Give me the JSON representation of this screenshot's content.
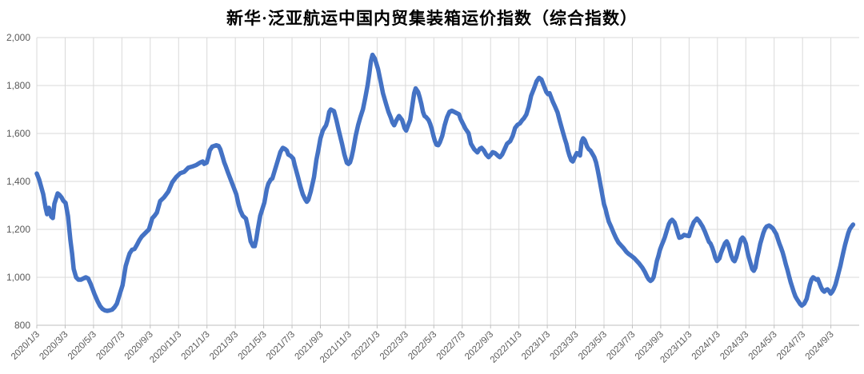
{
  "title": "新华·泛亚航运中国内贸集装箱运价指数（综合指数）",
  "chart_data": {
    "type": "line",
    "title": "新华·泛亚航运中国内贸集装箱运价指数（综合指数）",
    "series_name": "综合指数",
    "line_color": "#4472C4",
    "grid_color": "#D9D9D9",
    "axis_color": "#BFBFBF",
    "label_color": "#595959",
    "legend": "none",
    "grid": "on",
    "y_axis": {
      "min": 800,
      "max": 2000,
      "step": 200,
      "tick_labels": [
        "800",
        "1,000",
        "1,200",
        "1,400",
        "1,600",
        "1,800",
        "2,000"
      ]
    },
    "x_axis": {
      "tick_interval": "2 months",
      "tick_labels": [
        "2020/1/3",
        "2020/3/3",
        "2020/5/3",
        "2020/7/3",
        "2020/9/3",
        "2020/11/3",
        "2021/1/3",
        "2021/3/3",
        "2021/5/3",
        "2021/7/3",
        "2021/9/3",
        "2021/11/3",
        "2022/1/3",
        "2022/3/3",
        "2022/5/3",
        "2022/7/3",
        "2022/9/3",
        "2022/11/3",
        "2023/1/3",
        "2023/3/3",
        "2023/5/3",
        "2023/7/3",
        "2023/9/3",
        "2023/11/3",
        "2024/1/3",
        "2024/3/3",
        "2024/5/3",
        "2024/7/3",
        "2024/9/3"
      ]
    },
    "x_unit": "months since 2020/1/3",
    "points": [
      [
        0,
        1433
      ],
      [
        0.17,
        1407
      ],
      [
        0.45,
        1347
      ],
      [
        0.62,
        1290
      ],
      [
        0.73,
        1263
      ],
      [
        0.85,
        1290
      ],
      [
        1.02,
        1253
      ],
      [
        1.13,
        1247
      ],
      [
        1.24,
        1307
      ],
      [
        1.47,
        1350
      ],
      [
        1.58,
        1345
      ],
      [
        1.75,
        1333
      ],
      [
        1.86,
        1320
      ],
      [
        2.03,
        1310
      ],
      [
        2.2,
        1255
      ],
      [
        2.37,
        1155
      ],
      [
        2.49,
        1100
      ],
      [
        2.6,
        1035
      ],
      [
        2.77,
        1000
      ],
      [
        2.94,
        990
      ],
      [
        3.11,
        990
      ],
      [
        3.28,
        995
      ],
      [
        3.45,
        1000
      ],
      [
        3.62,
        995
      ],
      [
        3.78,
        975
      ],
      [
        3.9,
        957
      ],
      [
        4.07,
        930
      ],
      [
        4.29,
        900
      ],
      [
        4.46,
        880
      ],
      [
        4.63,
        868
      ],
      [
        4.8,
        862
      ],
      [
        4.97,
        860
      ],
      [
        5.14,
        862
      ],
      [
        5.31,
        865
      ],
      [
        5.48,
        875
      ],
      [
        5.65,
        890
      ],
      [
        5.88,
        935
      ],
      [
        6.05,
        967
      ],
      [
        6.27,
        1047
      ],
      [
        6.44,
        1080
      ],
      [
        6.55,
        1100
      ],
      [
        6.72,
        1115
      ],
      [
        6.89,
        1118
      ],
      [
        7.06,
        1135
      ],
      [
        7.23,
        1155
      ],
      [
        7.4,
        1170
      ],
      [
        7.57,
        1180
      ],
      [
        7.74,
        1190
      ],
      [
        7.91,
        1200
      ],
      [
        8.14,
        1246
      ],
      [
        8.31,
        1257
      ],
      [
        8.47,
        1270
      ],
      [
        8.7,
        1318
      ],
      [
        8.98,
        1334
      ],
      [
        9.27,
        1357
      ],
      [
        9.55,
        1396
      ],
      [
        9.83,
        1418
      ],
      [
        10.11,
        1434
      ],
      [
        10.4,
        1440
      ],
      [
        10.68,
        1457
      ],
      [
        10.96,
        1462
      ],
      [
        11.24,
        1468
      ],
      [
        11.53,
        1479
      ],
      [
        11.7,
        1483
      ],
      [
        11.81,
        1473
      ],
      [
        11.98,
        1478
      ],
      [
        12.09,
        1501
      ],
      [
        12.2,
        1529
      ],
      [
        12.37,
        1545
      ],
      [
        12.66,
        1551
      ],
      [
        12.82,
        1548
      ],
      [
        12.94,
        1534
      ],
      [
        13.11,
        1501
      ],
      [
        13.22,
        1479
      ],
      [
        13.33,
        1462
      ],
      [
        13.5,
        1434
      ],
      [
        13.79,
        1390
      ],
      [
        14.07,
        1346
      ],
      [
        14.24,
        1301
      ],
      [
        14.35,
        1279
      ],
      [
        14.52,
        1257
      ],
      [
        14.75,
        1245
      ],
      [
        14.92,
        1200
      ],
      [
        15.08,
        1150
      ],
      [
        15.25,
        1130
      ],
      [
        15.37,
        1130
      ],
      [
        15.48,
        1160
      ],
      [
        15.59,
        1201
      ],
      [
        15.76,
        1257
      ],
      [
        16.05,
        1312
      ],
      [
        16.22,
        1368
      ],
      [
        16.33,
        1390
      ],
      [
        16.5,
        1408
      ],
      [
        16.61,
        1412
      ],
      [
        16.78,
        1445
      ],
      [
        17.01,
        1490
      ],
      [
        17.18,
        1523
      ],
      [
        17.35,
        1540
      ],
      [
        17.51,
        1535
      ],
      [
        17.63,
        1529
      ],
      [
        17.74,
        1512
      ],
      [
        17.91,
        1506
      ],
      [
        18.08,
        1495
      ],
      [
        18.19,
        1468
      ],
      [
        18.42,
        1418
      ],
      [
        18.59,
        1379
      ],
      [
        18.76,
        1346
      ],
      [
        18.93,
        1325
      ],
      [
        19.04,
        1315
      ],
      [
        19.15,
        1323
      ],
      [
        19.32,
        1357
      ],
      [
        19.55,
        1418
      ],
      [
        19.72,
        1490
      ],
      [
        19.83,
        1523
      ],
      [
        20,
        1579
      ],
      [
        20.17,
        1612
      ],
      [
        20.28,
        1623
      ],
      [
        20.4,
        1634
      ],
      [
        20.51,
        1656
      ],
      [
        20.62,
        1690
      ],
      [
        20.73,
        1700
      ],
      [
        20.96,
        1693
      ],
      [
        21.13,
        1656
      ],
      [
        21.3,
        1612
      ],
      [
        21.53,
        1556
      ],
      [
        21.69,
        1512
      ],
      [
        21.86,
        1478
      ],
      [
        21.98,
        1473
      ],
      [
        22.09,
        1479
      ],
      [
        22.2,
        1501
      ],
      [
        22.32,
        1534
      ],
      [
        22.49,
        1590
      ],
      [
        22.66,
        1634
      ],
      [
        22.82,
        1668
      ],
      [
        23,
        1701
      ],
      [
        23.16,
        1747
      ],
      [
        23.33,
        1801
      ],
      [
        23.45,
        1851
      ],
      [
        23.56,
        1901
      ],
      [
        23.67,
        1928
      ],
      [
        23.84,
        1912
      ],
      [
        24.07,
        1868
      ],
      [
        24.24,
        1818
      ],
      [
        24.41,
        1768
      ],
      [
        24.63,
        1723
      ],
      [
        24.8,
        1690
      ],
      [
        24.97,
        1665
      ],
      [
        25.08,
        1646
      ],
      [
        25.2,
        1634
      ],
      [
        25.37,
        1656
      ],
      [
        25.54,
        1673
      ],
      [
        25.76,
        1656
      ],
      [
        25.93,
        1623
      ],
      [
        26.05,
        1612
      ],
      [
        26.16,
        1630
      ],
      [
        26.33,
        1656
      ],
      [
        26.5,
        1723
      ],
      [
        26.61,
        1768
      ],
      [
        26.72,
        1788
      ],
      [
        26.89,
        1773
      ],
      [
        27,
        1751
      ],
      [
        27.12,
        1723
      ],
      [
        27.23,
        1690
      ],
      [
        27.34,
        1673
      ],
      [
        27.46,
        1668
      ],
      [
        27.63,
        1656
      ],
      [
        27.74,
        1640
      ],
      [
        27.85,
        1620
      ],
      [
        27.97,
        1590
      ],
      [
        28.08,
        1568
      ],
      [
        28.19,
        1553
      ],
      [
        28.31,
        1551
      ],
      [
        28.42,
        1562
      ],
      [
        28.59,
        1590
      ],
      [
        28.76,
        1634
      ],
      [
        28.93,
        1668
      ],
      [
        29.1,
        1690
      ],
      [
        29.27,
        1695
      ],
      [
        29.44,
        1690
      ],
      [
        29.6,
        1685
      ],
      [
        29.77,
        1680
      ],
      [
        29.89,
        1660
      ],
      [
        30.06,
        1640
      ],
      [
        30.23,
        1620
      ],
      [
        30.45,
        1601
      ],
      [
        30.62,
        1557
      ],
      [
        30.85,
        1534
      ],
      [
        31.07,
        1521
      ],
      [
        31.24,
        1536
      ],
      [
        31.36,
        1540
      ],
      [
        31.53,
        1529
      ],
      [
        31.69,
        1512
      ],
      [
        31.86,
        1501
      ],
      [
        32.03,
        1512
      ],
      [
        32.15,
        1522
      ],
      [
        32.32,
        1518
      ],
      [
        32.54,
        1506
      ],
      [
        32.66,
        1501
      ],
      [
        32.82,
        1512
      ],
      [
        32.99,
        1534
      ],
      [
        33.16,
        1557
      ],
      [
        33.39,
        1568
      ],
      [
        33.56,
        1590
      ],
      [
        33.73,
        1623
      ],
      [
        33.9,
        1636
      ],
      [
        34.07,
        1642
      ],
      [
        34.24,
        1656
      ],
      [
        34.35,
        1663
      ],
      [
        34.52,
        1679
      ],
      [
        34.69,
        1712
      ],
      [
        34.86,
        1757
      ],
      [
        35.08,
        1790
      ],
      [
        35.25,
        1818
      ],
      [
        35.42,
        1832
      ],
      [
        35.59,
        1825
      ],
      [
        35.71,
        1806
      ],
      [
        35.82,
        1790
      ],
      [
        35.93,
        1773
      ],
      [
        36.05,
        1764
      ],
      [
        36.16,
        1768
      ],
      [
        36.27,
        1751
      ],
      [
        36.38,
        1734
      ],
      [
        36.55,
        1712
      ],
      [
        36.72,
        1688
      ],
      [
        36.89,
        1650
      ],
      [
        37.01,
        1625
      ],
      [
        37.12,
        1601
      ],
      [
        37.23,
        1579
      ],
      [
        37.35,
        1557
      ],
      [
        37.46,
        1528
      ],
      [
        37.57,
        1507
      ],
      [
        37.69,
        1488
      ],
      [
        37.8,
        1483
      ],
      [
        37.97,
        1505
      ],
      [
        38.08,
        1518
      ],
      [
        38.2,
        1516
      ],
      [
        38.31,
        1508
      ],
      [
        38.42,
        1565
      ],
      [
        38.53,
        1580
      ],
      [
        38.64,
        1572
      ],
      [
        38.81,
        1545
      ],
      [
        38.93,
        1534
      ],
      [
        39.04,
        1529
      ],
      [
        39.21,
        1512
      ],
      [
        39.32,
        1501
      ],
      [
        39.44,
        1479
      ],
      [
        39.55,
        1450
      ],
      [
        39.66,
        1415
      ],
      [
        39.77,
        1380
      ],
      [
        39.89,
        1340
      ],
      [
        40,
        1305
      ],
      [
        40.11,
        1285
      ],
      [
        40.23,
        1255
      ],
      [
        40.34,
        1232
      ],
      [
        40.51,
        1210
      ],
      [
        40.68,
        1185
      ],
      [
        40.85,
        1163
      ],
      [
        41.02,
        1145
      ],
      [
        41.19,
        1134
      ],
      [
        41.36,
        1123
      ],
      [
        41.58,
        1106
      ],
      [
        41.75,
        1097
      ],
      [
        41.92,
        1090
      ],
      [
        42.15,
        1079
      ],
      [
        42.32,
        1068
      ],
      [
        42.49,
        1057
      ],
      [
        42.71,
        1040
      ],
      [
        42.88,
        1023
      ],
      [
        43.05,
        1001
      ],
      [
        43.16,
        991
      ],
      [
        43.28,
        985
      ],
      [
        43.39,
        990
      ],
      [
        43.5,
        1001
      ],
      [
        43.62,
        1035
      ],
      [
        43.73,
        1068
      ],
      [
        43.84,
        1090
      ],
      [
        43.95,
        1115
      ],
      [
        44.07,
        1134
      ],
      [
        44.18,
        1150
      ],
      [
        44.29,
        1167
      ],
      [
        44.46,
        1201
      ],
      [
        44.58,
        1223
      ],
      [
        44.69,
        1234
      ],
      [
        44.8,
        1240
      ],
      [
        44.97,
        1229
      ],
      [
        45.08,
        1210
      ],
      [
        45.2,
        1184
      ],
      [
        45.31,
        1165
      ],
      [
        45.48,
        1168
      ],
      [
        45.65,
        1177
      ],
      [
        45.82,
        1174
      ],
      [
        45.99,
        1172
      ],
      [
        46.16,
        1205
      ],
      [
        46.33,
        1230
      ],
      [
        46.55,
        1245
      ],
      [
        46.72,
        1234
      ],
      [
        46.95,
        1212
      ],
      [
        47.12,
        1190
      ],
      [
        47.23,
        1173
      ],
      [
        47.4,
        1148
      ],
      [
        47.51,
        1141
      ],
      [
        47.63,
        1125
      ],
      [
        47.74,
        1105
      ],
      [
        47.85,
        1082
      ],
      [
        47.97,
        1068
      ],
      [
        48.14,
        1079
      ],
      [
        48.25,
        1101
      ],
      [
        48.36,
        1118
      ],
      [
        48.53,
        1142
      ],
      [
        48.65,
        1150
      ],
      [
        48.76,
        1137
      ],
      [
        48.87,
        1115
      ],
      [
        48.98,
        1090
      ],
      [
        49.1,
        1073
      ],
      [
        49.21,
        1067
      ],
      [
        49.32,
        1082
      ],
      [
        49.43,
        1105
      ],
      [
        49.55,
        1135
      ],
      [
        49.66,
        1158
      ],
      [
        49.77,
        1166
      ],
      [
        49.88,
        1158
      ],
      [
        50,
        1140
      ],
      [
        50.11,
        1108
      ],
      [
        50.22,
        1082
      ],
      [
        50.34,
        1057
      ],
      [
        50.45,
        1035
      ],
      [
        50.56,
        1027
      ],
      [
        50.68,
        1040
      ],
      [
        50.79,
        1079
      ],
      [
        50.9,
        1106
      ],
      [
        51.02,
        1140
      ],
      [
        51.13,
        1163
      ],
      [
        51.24,
        1185
      ],
      [
        51.36,
        1203
      ],
      [
        51.47,
        1212
      ],
      [
        51.64,
        1216
      ],
      [
        51.75,
        1212
      ],
      [
        51.92,
        1203
      ],
      [
        52.03,
        1192
      ],
      [
        52.15,
        1180
      ],
      [
        52.26,
        1160
      ],
      [
        52.37,
        1140
      ],
      [
        52.49,
        1122
      ],
      [
        52.6,
        1104
      ],
      [
        52.71,
        1080
      ],
      [
        52.82,
        1055
      ],
      [
        52.94,
        1030
      ],
      [
        53.05,
        1005
      ],
      [
        53.16,
        980
      ],
      [
        53.28,
        958
      ],
      [
        53.39,
        938
      ],
      [
        53.5,
        920
      ],
      [
        53.62,
        908
      ],
      [
        53.73,
        898
      ],
      [
        53.84,
        888
      ],
      [
        53.95,
        882
      ],
      [
        54.12,
        890
      ],
      [
        54.29,
        910
      ],
      [
        54.41,
        940
      ],
      [
        54.52,
        970
      ],
      [
        54.63,
        990
      ],
      [
        54.75,
        1000
      ],
      [
        54.86,
        995
      ],
      [
        54.97,
        990
      ],
      [
        55.08,
        993
      ],
      [
        55.2,
        975
      ],
      [
        55.31,
        958
      ],
      [
        55.42,
        946
      ],
      [
        55.54,
        940
      ],
      [
        55.65,
        947
      ],
      [
        55.76,
        950
      ],
      [
        55.88,
        942
      ],
      [
        55.99,
        932
      ],
      [
        56.1,
        940
      ],
      [
        56.21,
        952
      ],
      [
        56.33,
        970
      ],
      [
        56.44,
        995
      ],
      [
        56.55,
        1020
      ],
      [
        56.67,
        1048
      ],
      [
        56.78,
        1078
      ],
      [
        56.89,
        1108
      ],
      [
        57,
        1135
      ],
      [
        57.12,
        1162
      ],
      [
        57.23,
        1185
      ],
      [
        57.34,
        1202
      ],
      [
        57.46,
        1212
      ],
      [
        57.57,
        1220
      ]
    ]
  }
}
